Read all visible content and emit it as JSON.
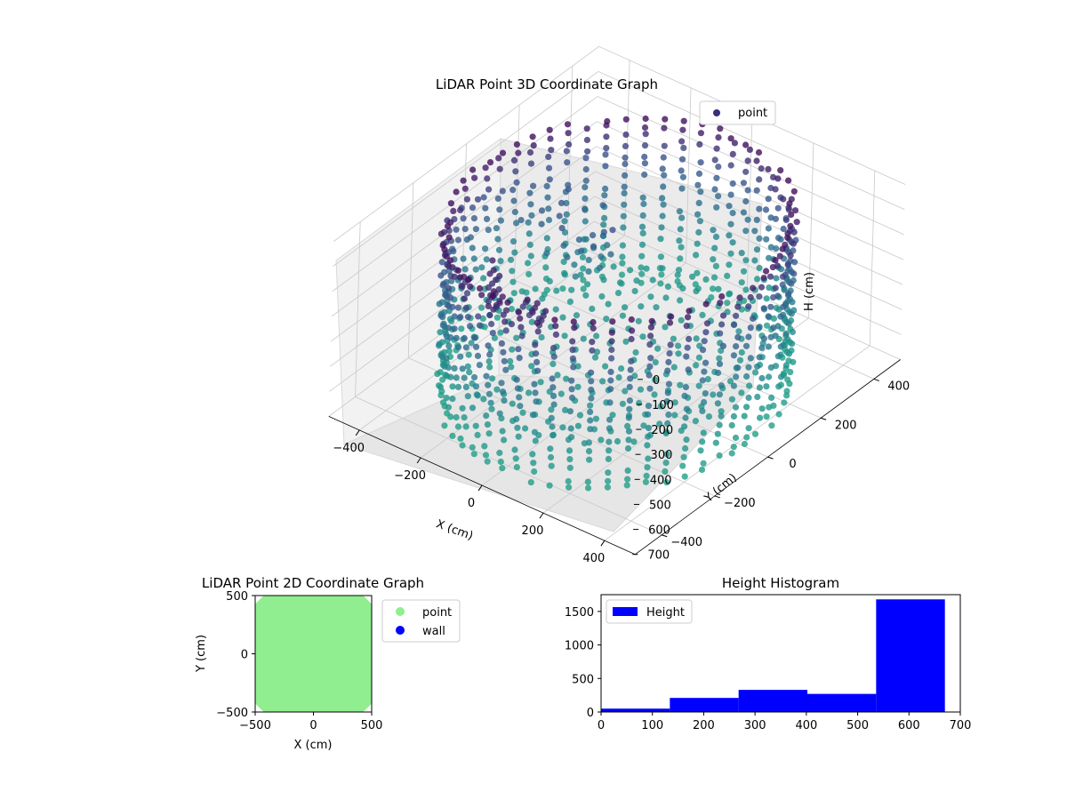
{
  "colors": {
    "point3d_legend": "#3b2d7a",
    "point2d": "#90ee90",
    "wall": "#0000ff",
    "hist_bar": "#0000ff",
    "viridis_dark": "#440154",
    "viridis_mid": "#3b528b",
    "viridis_teal": "#21918c"
  },
  "chart_data": [
    {
      "type": "scatter",
      "projection": "3d",
      "title": "LiDAR Point 3D Coordinate Graph",
      "xlabel": "X (cm)",
      "ylabel": "Y (cm)",
      "zlabel": "H (cm)",
      "xticks": [
        "−400",
        "−200",
        "0",
        "200",
        "400"
      ],
      "yticks": [
        "−400",
        "−200",
        "0",
        "200",
        "400"
      ],
      "zticks": [
        "0",
        "100",
        "200",
        "300",
        "400",
        "500",
        "600",
        "700"
      ],
      "xlim": [
        -500,
        500
      ],
      "ylim": [
        -500,
        500
      ],
      "zlim": [
        0,
        700
      ],
      "z_axis_inverted": true,
      "grid": true,
      "legend": {
        "placement": "upper-right",
        "entries": [
          "point"
        ]
      },
      "colormap": "viridis",
      "shape": "cylindrical wall ring of points, radius about 430 cm, heights 0-700 cm, with a floor disc at about 560 cm and a scattered cluster of points near the top",
      "wall_radius": 430,
      "floor_height": 560,
      "azimuth_count": 56,
      "height_levels": [
        30,
        60,
        100,
        140,
        180,
        220,
        260,
        300,
        340,
        380,
        420,
        460,
        500,
        540,
        580,
        620,
        660,
        690
      ]
    },
    {
      "type": "scatter",
      "title": "LiDAR Point 2D Coordinate Graph",
      "xlabel": "X (cm)",
      "ylabel": "Y (cm)",
      "xlim": [
        -500,
        500
      ],
      "ylim": [
        -500,
        500
      ],
      "xticks": [
        "−500",
        "0",
        "500"
      ],
      "yticks": [
        "−500",
        "0",
        "500"
      ],
      "legend": {
        "placement": "outside-right",
        "entries": [
          "point",
          "wall"
        ]
      },
      "series": [
        {
          "name": "point",
          "color": "#90ee90",
          "shape": "filled disc covering the plot, clipped where radius exceeds about 430 cm"
        },
        {
          "name": "wall",
          "color": "#0000ff",
          "values": []
        }
      ]
    },
    {
      "type": "bar",
      "title": "Height Histogram",
      "xlim": [
        0,
        700
      ],
      "ylim": [
        0,
        1750
      ],
      "xticks": [
        "0",
        "100",
        "200",
        "300",
        "400",
        "500",
        "600",
        "700"
      ],
      "yticks": [
        "0",
        "500",
        "1000",
        "1500"
      ],
      "legend": {
        "placement": "upper-left",
        "entries": [
          "Height"
        ]
      },
      "series": [
        {
          "name": "Height",
          "bins": [
            [
              0,
              134
            ],
            [
              134,
              268
            ],
            [
              268,
              402
            ],
            [
              402,
              536
            ],
            [
              536,
              670
            ]
          ],
          "values": [
            50,
            210,
            330,
            270,
            1680
          ]
        }
      ]
    }
  ]
}
